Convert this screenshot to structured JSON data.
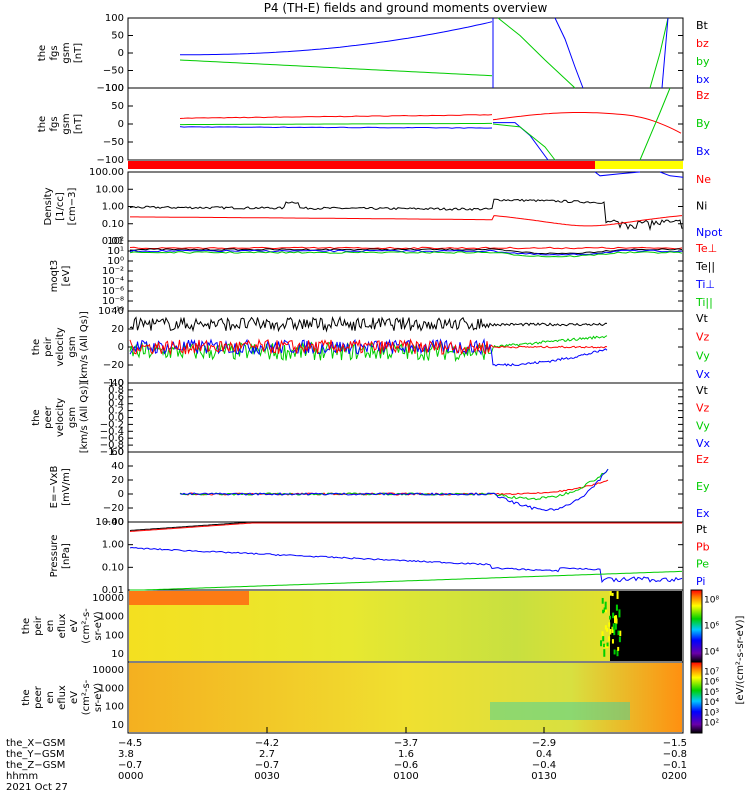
{
  "title": "P4 (TH-E) fields and ground moments overview",
  "colors": {
    "black": "#000000",
    "red": "#ff0000",
    "green": "#00cc00",
    "blue": "#0000ff",
    "yellow": "#ffff00"
  },
  "chart_data": [
    {
      "type": "line",
      "title": "",
      "ylabel_lines": [
        "the",
        "fgs",
        "gsm",
        "[nT]"
      ],
      "ylim": [
        -100,
        100
      ],
      "yticks": [
        "100",
        "50",
        "0",
        "−50",
        "−100"
      ],
      "series": [
        {
          "name": "Bt",
          "color": "black"
        },
        {
          "name": "bz",
          "color": "red"
        },
        {
          "name": "by",
          "color": "green"
        },
        {
          "name": "bx",
          "color": "blue"
        }
      ]
    },
    {
      "type": "line",
      "ylabel_lines": [
        "the",
        "fgs",
        "gsm",
        "[nT]"
      ],
      "ylim": [
        -125,
        125
      ],
      "yticks": [
        "100",
        "50",
        "0",
        "−50",
        "−100"
      ],
      "series": [
        {
          "name": "Bz",
          "color": "red"
        },
        {
          "name": "By",
          "color": "green"
        },
        {
          "name": "Bx",
          "color": "blue"
        }
      ]
    },
    {
      "type": "line",
      "ylabel_lines": [
        "Density",
        "[1/cc]",
        "[cm−3]"
      ],
      "scale": "log",
      "yticks": [
        "100.00",
        "10.00",
        "1.00",
        "0.10",
        "0.01"
      ],
      "series": [
        {
          "name": "Ne",
          "color": "red"
        },
        {
          "name": "Ni",
          "color": "black"
        },
        {
          "name": "Npot",
          "color": "blue"
        }
      ]
    },
    {
      "type": "line",
      "ylabel_lines": [
        "moqt3",
        "[eV]"
      ],
      "scale": "log",
      "yticks": [
        "10²",
        "10¹",
        "10⁰",
        "10⁻²",
        "10⁻⁴",
        "10⁻⁶",
        "10⁻⁸",
        "10⁻¹⁰"
      ],
      "series": [
        {
          "name": "Te⊥",
          "color": "red"
        },
        {
          "name": "Te||",
          "color": "black"
        },
        {
          "name": "Ti⊥",
          "color": "blue"
        },
        {
          "name": "Ti||",
          "color": "green"
        }
      ]
    },
    {
      "type": "line",
      "ylabel_lines": [
        "the",
        "peir",
        "velocity",
        "gsm",
        "[km/s (All Qs)]"
      ],
      "ylim": [
        -40,
        40
      ],
      "yticks": [
        "40",
        "20",
        "0",
        "−20",
        "−40"
      ],
      "series": [
        {
          "name": "Vt",
          "color": "black"
        },
        {
          "name": "Vz",
          "color": "red"
        },
        {
          "name": "Vy",
          "color": "green"
        },
        {
          "name": "Vx",
          "color": "blue"
        }
      ]
    },
    {
      "type": "line",
      "ylabel_lines": [
        "the",
        "peer",
        "velocity",
        "gsm",
        "[km/s (All Qs)]"
      ],
      "ylim": [
        -1,
        1
      ],
      "yticks": [
        "1.0",
        "0.8",
        "0.6",
        "0.4",
        "0.2",
        "0.0",
        "−0.2",
        "−0.4",
        "−0.6",
        "−0.8",
        "−1.0"
      ],
      "series": [
        {
          "name": "Vt",
          "color": "black"
        },
        {
          "name": "Vz",
          "color": "red"
        },
        {
          "name": "Vy",
          "color": "green"
        },
        {
          "name": "Vx",
          "color": "blue"
        }
      ]
    },
    {
      "type": "line",
      "ylabel_lines": [
        "E=−VxB",
        "[mV/m]"
      ],
      "ylim": [
        -40,
        60
      ],
      "yticks": [
        "60",
        "40",
        "20",
        "0",
        "−20",
        "−40"
      ],
      "series": [
        {
          "name": "Ez",
          "color": "red"
        },
        {
          "name": "Ey",
          "color": "green"
        },
        {
          "name": "Ex",
          "color": "blue"
        }
      ]
    },
    {
      "type": "line",
      "ylabel_lines": [
        "Pressure",
        "[nPa]"
      ],
      "scale": "log",
      "yticks": [
        "10.00",
        "1.00",
        "0.10",
        "0.01"
      ],
      "series": [
        {
          "name": "Pt",
          "color": "black"
        },
        {
          "name": "Pb",
          "color": "red"
        },
        {
          "name": "Pe",
          "color": "green"
        },
        {
          "name": "Pi",
          "color": "blue"
        }
      ]
    },
    {
      "type": "heatmap",
      "ylabel_lines": [
        "the",
        "peir",
        "en",
        "eflux",
        "eV",
        "(cm²-s-",
        "sr-eV)"
      ],
      "yticks": [
        "10000",
        "1000",
        "100",
        "10"
      ],
      "colorbar": {
        "ticks": [
          "10⁸",
          "10⁶",
          "10⁴"
        ],
        "label": "[eV/(cm²-s-sr-eV)]"
      }
    },
    {
      "type": "heatmap",
      "ylabel_lines": [
        "the",
        "peer",
        "en",
        "eflux",
        "eV",
        "(cm²-s-",
        "sr-eV)"
      ],
      "yticks": [
        "10000",
        "1000",
        "100",
        "10"
      ],
      "colorbar": {
        "ticks": [
          "10⁷",
          "10⁶",
          "10⁵",
          "10⁴",
          "10³",
          "10²"
        ],
        "label": "[eV/(cm²-s-sr-eV)]"
      }
    }
  ],
  "xaxis": {
    "row_labels": [
      "the_X−GSM",
      "the_Y−GSM",
      "the_Z−GSM",
      "hhmm",
      "2021 Oct 27"
    ],
    "columns": [
      {
        "x": "−4.5",
        "y": "3.8",
        "z": "−0.7",
        "hhmm": "0000"
      },
      {
        "x": "−4.2",
        "y": "2.7",
        "z": "−0.7",
        "hhmm": "0030"
      },
      {
        "x": "−3.7",
        "y": "1.6",
        "z": "−0.6",
        "hhmm": "0100"
      },
      {
        "x": "−2.9",
        "y": "0.4",
        "z": "−0.4",
        "hhmm": "0130"
      },
      {
        "x": "−1.5",
        "y": "−0.8",
        "z": "−0.1",
        "hhmm": "0200"
      }
    ]
  }
}
